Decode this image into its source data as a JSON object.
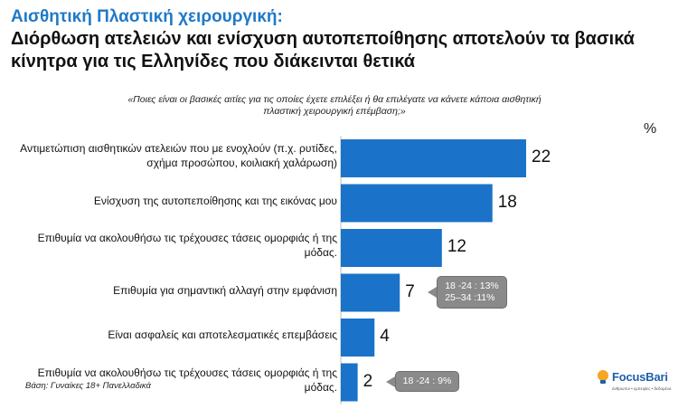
{
  "header": {
    "title_line1": "Αισθητική Πλαστική χειρουργική:",
    "title_line2": "Διόρθωση ατελειών και ενίσχυση αυτοπεποίθησης αποτελούν τα βασικά κίνητρα για τις Ελληνίδες που διάκεινται θετικά"
  },
  "question": "«Ποιες είναι οι βασικές αιτίες για τις οποίες έχετε επιλέξει ή θα επιλέγατε να κάνετε κάποια αισθητική πλαστική χειρουργική επέμβαση;»",
  "unit_symbol": "%",
  "chart_data": {
    "type": "bar",
    "orientation": "horizontal",
    "title": "Αισθητική Πλαστική χειρουργική: Διόρθωση ατελειών και ενίσχυση αυτοπεποίθησης αποτελούν τα βασικά κίνητρα για τις Ελληνίδες που διάκεινται θετικά",
    "categories": [
      "Αντιμετώπιση αισθητικών ατελειών που με ενοχλούν (π.χ. ρυτίδες, σχήμα προσώπου, κοιλιακή χαλάρωση)",
      "Ενίσχυση της αυτοπεποίθησης και της εικόνας μου",
      "Επιθυμία να ακολουθήσω τις τρέχουσες τάσεις ομορφιάς ή της μόδας.",
      "Επιθυμία για σημαντική αλλαγή στην εμφάνιση",
      "Είναι ασφαλείς και αποτελεσματικές επεμβάσεις",
      "Επιθυμία να ακολουθήσω τις τρέχουσες τάσεις ομορφιάς ή της μόδας."
    ],
    "values": [
      22,
      18,
      12,
      7,
      4,
      2
    ],
    "xlim": [
      0,
      22
    ],
    "xlabel": "",
    "ylabel": "",
    "unit": "%",
    "bar_color": "#1a73c8",
    "annotations": [
      {
        "category_index": 3,
        "lines": [
          "18 -24 : 13%",
          "25–34 :11%"
        ]
      },
      {
        "category_index": 5,
        "lines": [
          "18 -24 : 9%"
        ]
      }
    ]
  },
  "footer": {
    "base_note": "Βάση: Γυναίκες 18+ Πανελλαδικά",
    "logo_text": "FocusBari",
    "logo_tagline": "άνθρωποι • εμπειρίες • δεδομένα"
  }
}
